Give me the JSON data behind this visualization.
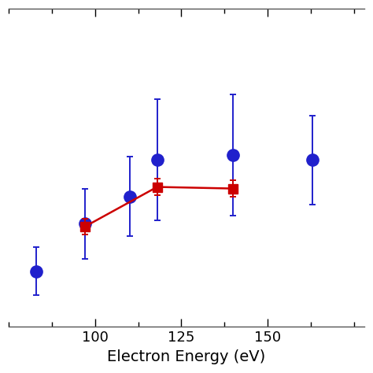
{
  "blue_x": [
    83,
    97,
    110,
    118,
    140,
    163
  ],
  "blue_y": [
    3.5,
    6.5,
    8.2,
    10.5,
    10.8,
    10.5
  ],
  "blue_yerr_lo": [
    1.5,
    2.2,
    2.5,
    3.8,
    3.8,
    2.8
  ],
  "blue_yerr_hi": [
    1.5,
    2.2,
    2.5,
    3.8,
    3.8,
    2.8
  ],
  "red_x": [
    97,
    118,
    140
  ],
  "red_y": [
    6.3,
    8.8,
    8.7
  ],
  "red_yerr": [
    0.5,
    0.5,
    0.5
  ],
  "xlabel": "Electron Energy (eV)",
  "xlim": [
    75,
    178
  ],
  "ylim": [
    0,
    20
  ],
  "blue_color": "#2020cc",
  "red_color": "#cc0000",
  "marker_size_blue": 11,
  "marker_size_red": 9,
  "line_width": 1.8,
  "cap_size": 3,
  "elinewidth": 1.4,
  "xlabel_fontsize": 14,
  "tick_fontsize": 13
}
